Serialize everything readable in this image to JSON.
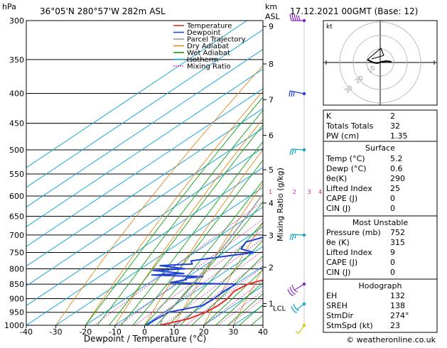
{
  "header": {
    "location": "36°05'N  280°57'W  282m  ASL",
    "datetime": "17.12.2021  00GMT  (Base: 12)"
  },
  "axes": {
    "pressure_unit": "hPa",
    "km_unit": "km",
    "asl_label": "ASL",
    "xlabel": "Dewpoint / Temperature (°C)",
    "mixing_label": "Mixing Ratio (g/kg)"
  },
  "legend": [
    {
      "label": "Temperature",
      "color": "#e52b2b"
    },
    {
      "label": "Dewpoint",
      "color": "#1f43d4"
    },
    {
      "label": "Parcel Trajectory",
      "color": "#9a9a9a"
    },
    {
      "label": "Dry Adiabat",
      "color": "#e08a1c"
    },
    {
      "label": "Wet Adiabat",
      "color": "#10a010"
    },
    {
      "label": "Isotherm",
      "color": "#1aa7dd"
    },
    {
      "label": "Mixing Ratio",
      "color": "#d21aa8"
    }
  ],
  "chart_data": {
    "type": "line",
    "title": "",
    "xlim": [
      -40,
      40
    ],
    "ylim_hpa": [
      1000,
      300
    ],
    "x_ticks": [
      -40,
      -30,
      -20,
      -10,
      0,
      10,
      20,
      30,
      40
    ],
    "pressure_ticks": [
      300,
      350,
      400,
      450,
      500,
      550,
      600,
      650,
      700,
      750,
      800,
      850,
      900,
      950,
      1000
    ],
    "km_ticks": [
      {
        "km": "1",
        "p": 918
      },
      {
        "km": "2",
        "p": 795
      },
      {
        "km": "3",
        "p": 701
      },
      {
        "km": "4",
        "p": 617
      },
      {
        "km": "5",
        "p": 541
      },
      {
        "km": "6",
        "p": 472
      },
      {
        "km": "7",
        "p": 410
      },
      {
        "km": "8",
        "p": 356
      },
      {
        "km": "9",
        "p": 307
      }
    ],
    "lcl": {
      "label": "LCL",
      "p": 928
    },
    "mixing_ratio_labels": [
      "1",
      "2",
      "3",
      "4",
      "6",
      "8",
      "10",
      "15",
      "20",
      "25"
    ],
    "series": [
      {
        "name": "Temperature",
        "color": "#e52b2b",
        "points": [
          [
            1000,
            5.2
          ],
          [
            975,
            11.5
          ],
          [
            950,
            14.0
          ],
          [
            925,
            14.8
          ],
          [
            900,
            14.5
          ],
          [
            875,
            13.0
          ],
          [
            850,
            14.0
          ],
          [
            825,
            19.5
          ],
          [
            800,
            20.5
          ],
          [
            775,
            19.2
          ],
          [
            750,
            17.2
          ],
          [
            700,
            13.5
          ],
          [
            650,
            10.5
          ],
          [
            600,
            8.5
          ],
          [
            570,
            9.0
          ],
          [
            550,
            8.2
          ],
          [
            500,
            4.0
          ],
          [
            450,
            -1.5
          ],
          [
            400,
            -8.5
          ],
          [
            375,
            -12.0
          ],
          [
            350,
            -16.0
          ],
          [
            325,
            -21.0
          ],
          [
            300,
            -27.0
          ]
        ]
      },
      {
        "name": "Dewpoint",
        "color": "#1f43d4",
        "points": [
          [
            1000,
            0.6
          ],
          [
            975,
            0.8
          ],
          [
            950,
            1.5
          ],
          [
            925,
            9.5
          ],
          [
            900,
            10.0
          ],
          [
            875,
            9.5
          ],
          [
            850,
            10.0
          ],
          [
            845,
            -13.0
          ],
          [
            835,
            -9.0
          ],
          [
            830,
            -10.0
          ],
          [
            825,
            -5.0
          ],
          [
            820,
            -23.0
          ],
          [
            815,
            -13.0
          ],
          [
            805,
            -25.0
          ],
          [
            800,
            -15.0
          ],
          [
            790,
            -25.0
          ],
          [
            785,
            -15.0
          ],
          [
            775,
            -17.0
          ],
          [
            760,
            -7.0
          ],
          [
            750,
            0.0
          ],
          [
            740,
            -6.0
          ],
          [
            720,
            -8.0
          ],
          [
            700,
            -3.0
          ],
          [
            680,
            1.0
          ],
          [
            660,
            3.0
          ],
          [
            640,
            2.0
          ],
          [
            600,
            1.5
          ],
          [
            580,
            -1.0
          ],
          [
            560,
            -12.0
          ],
          [
            550,
            -33.0
          ],
          [
            500,
            -23.0
          ],
          [
            475,
            -27.0
          ],
          [
            450,
            -23.0
          ],
          [
            425,
            -23.0
          ],
          [
            400,
            -28.0
          ],
          [
            380,
            -20.0
          ],
          [
            360,
            -20.0
          ],
          [
            340,
            -22.0
          ],
          [
            300,
            -28.0
          ]
        ]
      },
      {
        "name": "Parcel Trajectory",
        "color": "#9a9a9a",
        "points": [
          [
            1000,
            5.2
          ],
          [
            975,
            2.8
          ],
          [
            950,
            0.7
          ],
          [
            925,
            -0.1
          ],
          [
            900,
            -1.6
          ],
          [
            850,
            -4.7
          ],
          [
            800,
            -8.1
          ],
          [
            750,
            -11.9
          ],
          [
            700,
            -16.1
          ],
          [
            650,
            -20.8
          ],
          [
            600,
            -26.1
          ],
          [
            550,
            -32.0
          ],
          [
            500,
            -38.6
          ],
          [
            450,
            -46.0
          ],
          [
            400,
            -54.0
          ],
          [
            350,
            -62.5
          ],
          [
            300,
            -71.0
          ]
        ]
      }
    ]
  },
  "table": {
    "k_label": "K",
    "k_value": "2",
    "tt_label": "Totals Totals",
    "tt_value": "32",
    "pw_label": "PW (cm)",
    "pw_value": "1.35",
    "surface_title": "Surface",
    "surface_rows": [
      {
        "label": "Temp (°C)",
        "value": "5.2"
      },
      {
        "label": "Dewp (°C)",
        "value": "0.6"
      },
      {
        "label": "θe(K)",
        "value": "290"
      },
      {
        "label": "Lifted Index",
        "value": "25"
      },
      {
        "label": "CAPE (J)",
        "value": "0"
      },
      {
        "label": "CIN (J)",
        "value": "0"
      }
    ],
    "unstable_title": "Most Unstable",
    "unstable_rows": [
      {
        "label": "Pressure (mb)",
        "value": "752"
      },
      {
        "label": "θe (K)",
        "value": "315"
      },
      {
        "label": "Lifted Index",
        "value": "9"
      },
      {
        "label": "CAPE (J)",
        "value": "0"
      },
      {
        "label": "CIN (J)",
        "value": "0"
      }
    ],
    "hodo_title": "Hodograph",
    "hodo_rows": [
      {
        "label": "EH",
        "value": "132"
      },
      {
        "label": "SREH",
        "value": "138"
      },
      {
        "label": "StmDir",
        "value": "274°"
      },
      {
        "label": "StmSpd (kt)",
        "value": "23"
      }
    ]
  },
  "hodograph": {
    "unit_label": "kt",
    "ring_labels": [
      "10",
      "20",
      "30"
    ]
  },
  "footer": {
    "copyright": "© weatheronline.co.uk"
  },
  "colors": {
    "temperature": "#e52b2b",
    "dewpoint": "#1f43d4",
    "parcel": "#9a9a9a",
    "dry_adiabat": "#e08a1c",
    "wet_adiabat": "#10a010",
    "isotherm": "#1aa7dd",
    "mixing_ratio": "#d21aa8",
    "wind_barb_blue": "#14a8c4",
    "wind_barb_purple": "#8a2bbf",
    "wind_barb_yellow": "#d8c81a"
  }
}
